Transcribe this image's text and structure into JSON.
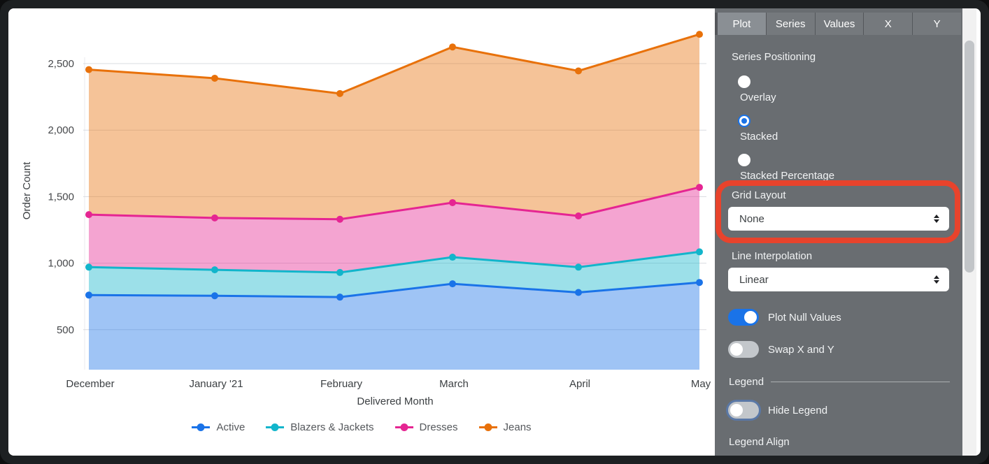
{
  "panel": {
    "tabs": [
      {
        "label": "Plot",
        "active": true
      },
      {
        "label": "Series",
        "active": false
      },
      {
        "label": "Values",
        "active": false
      },
      {
        "label": "X",
        "active": false
      },
      {
        "label": "Y",
        "active": false
      }
    ],
    "series_positioning": {
      "label": "Series Positioning",
      "options": [
        {
          "label": "Overlay",
          "selected": false
        },
        {
          "label": "Stacked",
          "selected": true
        },
        {
          "label": "Stacked Percentage",
          "selected": false
        }
      ]
    },
    "grid_layout": {
      "label": "Grid Layout",
      "value": "None"
    },
    "line_interpolation": {
      "label": "Line Interpolation",
      "value": "Linear"
    },
    "plot_null_values": {
      "label": "Plot Null Values",
      "on": true
    },
    "swap_x_y": {
      "label": "Swap X and Y",
      "on": false
    },
    "legend_header": "Legend",
    "hide_legend": {
      "label": "Hide Legend",
      "on": false
    },
    "legend_align_label": "Legend Align"
  },
  "annotation": {
    "shape": "rounded-rectangle",
    "around": "Grid Layout control",
    "color": "#e8432c"
  },
  "colors": {
    "accent_blue": "#1a73e8",
    "toggle_off": "#c3c7cb",
    "panel_bg": "#696d71"
  },
  "chart_data": {
    "type": "area",
    "stacking": "stacked",
    "categories": [
      "December",
      "January '21",
      "February",
      "March",
      "April",
      "May"
    ],
    "xlabel": "Delivered Month",
    "ylabel": "Order Count",
    "y_ticks": [
      500,
      1000,
      1500,
      2000,
      2500
    ],
    "ylim_visible": [
      190,
      2800
    ],
    "grid": "horizontal",
    "legend_position": "bottom",
    "series": [
      {
        "name": "Active",
        "color": "#1a73e8",
        "values": [
          760,
          755,
          745,
          845,
          780,
          855
        ]
      },
      {
        "name": "Blazers & Jackets",
        "color": "#12b5cb",
        "values": [
          210,
          195,
          185,
          200,
          190,
          230
        ]
      },
      {
        "name": "Dresses",
        "color": "#e52592",
        "values": [
          395,
          390,
          400,
          410,
          385,
          485
        ]
      },
      {
        "name": "Jeans",
        "color": "#e8710a",
        "values": [
          1090,
          1050,
          945,
          1170,
          1090,
          1150
        ]
      }
    ],
    "stacked_totals": [
      2455,
      2390,
      2275,
      2625,
      2445,
      2720
    ]
  }
}
